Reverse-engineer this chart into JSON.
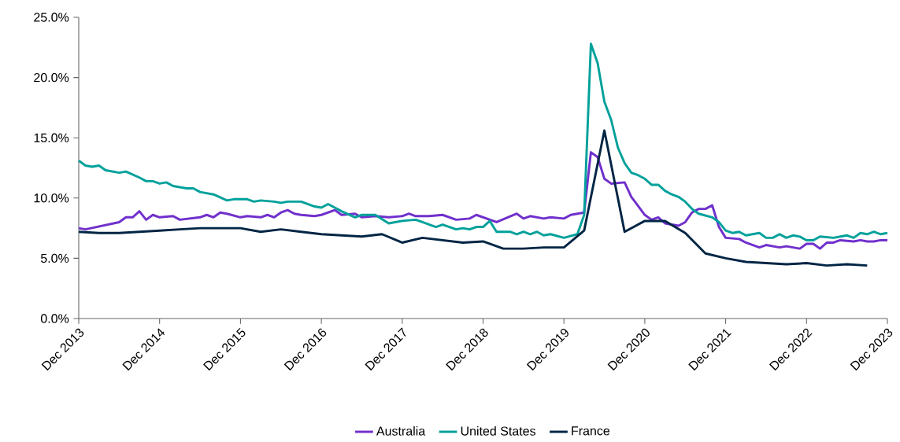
{
  "chart_data": {
    "type": "line",
    "legend": "bottom",
    "grid": false,
    "marker": "none",
    "line_style": "solid",
    "xlim": [
      "2013-12",
      "2023-12"
    ],
    "xticks": [
      {
        "value": "2013-12",
        "label": "Dec 2013"
      },
      {
        "value": "2014-12",
        "label": "Dec 2014"
      },
      {
        "value": "2015-12",
        "label": "Dec 2015"
      },
      {
        "value": "2016-12",
        "label": "Dec 2016"
      },
      {
        "value": "2017-12",
        "label": "Dec 2017"
      },
      {
        "value": "2018-12",
        "label": "Dec 2018"
      },
      {
        "value": "2019-12",
        "label": "Dec 2019"
      },
      {
        "value": "2020-12",
        "label": "Dec 2020"
      },
      {
        "value": "2021-12",
        "label": "Dec 2021"
      },
      {
        "value": "2022-12",
        "label": "Dec 2022"
      },
      {
        "value": "2023-12",
        "label": "Dec 2023"
      }
    ],
    "ylim": [
      0,
      25
    ],
    "yticks": [
      {
        "value": 0,
        "label": "0.0%"
      },
      {
        "value": 5,
        "label": "5.0%"
      },
      {
        "value": 10,
        "label": "10.0%"
      },
      {
        "value": 15,
        "label": "15.0%"
      },
      {
        "value": 20,
        "label": "20.0%"
      },
      {
        "value": 25,
        "label": "25.0%"
      }
    ],
    "series": [
      {
        "name": "Australia",
        "color": "#7030cc",
        "x": [
          "2013-12",
          "2014-01",
          "2014-06",
          "2014-07",
          "2014-08",
          "2014-09",
          "2014-10",
          "2014-11",
          "2014-12",
          "2015-02",
          "2015-03",
          "2015-06",
          "2015-07",
          "2015-08",
          "2015-09",
          "2015-10",
          "2015-12",
          "2016-01",
          "2016-03",
          "2016-04",
          "2016-05",
          "2016-06",
          "2016-07",
          "2016-08",
          "2016-09",
          "2016-11",
          "2016-12",
          "2017-02",
          "2017-03",
          "2017-05",
          "2017-06",
          "2017-08",
          "2017-10",
          "2017-12",
          "2018-01",
          "2018-02",
          "2018-04",
          "2018-06",
          "2018-08",
          "2018-10",
          "2018-11",
          "2019-01",
          "2019-02",
          "2019-05",
          "2019-06",
          "2019-07",
          "2019-09",
          "2019-10",
          "2019-12",
          "2020-01",
          "2020-02",
          "2020-03",
          "2020-04",
          "2020-05",
          "2020-06",
          "2020-07",
          "2020-09",
          "2020-10",
          "2020-12",
          "2021-01",
          "2021-02",
          "2021-03",
          "2021-05",
          "2021-06",
          "2021-07",
          "2021-08",
          "2021-09",
          "2021-10",
          "2021-11",
          "2021-12",
          "2022-02",
          "2022-03",
          "2022-05",
          "2022-06",
          "2022-08",
          "2022-09",
          "2022-11",
          "2022-12",
          "2023-01",
          "2023-02",
          "2023-03",
          "2023-04",
          "2023-05",
          "2023-07",
          "2023-08",
          "2023-09",
          "2023-10",
          "2023-11",
          "2023-12"
        ],
        "values": [
          7.5,
          7.4,
          8.0,
          8.4,
          8.4,
          8.9,
          8.2,
          8.6,
          8.4,
          8.5,
          8.2,
          8.4,
          8.6,
          8.4,
          8.8,
          8.7,
          8.4,
          8.5,
          8.4,
          8.6,
          8.4,
          8.8,
          9.0,
          8.7,
          8.6,
          8.5,
          8.6,
          9.0,
          8.6,
          8.7,
          8.4,
          8.5,
          8.4,
          8.5,
          8.7,
          8.5,
          8.5,
          8.6,
          8.2,
          8.3,
          8.6,
          8.2,
          8.0,
          8.7,
          8.3,
          8.5,
          8.3,
          8.4,
          8.3,
          8.6,
          8.7,
          8.8,
          13.8,
          13.4,
          11.6,
          11.2,
          11.3,
          10.1,
          8.6,
          8.2,
          8.4,
          7.9,
          7.7,
          8.0,
          8.8,
          9.1,
          9.1,
          9.4,
          7.6,
          6.7,
          6.6,
          6.3,
          5.9,
          6.1,
          5.9,
          6.0,
          5.8,
          6.2,
          6.2,
          5.8,
          6.3,
          6.3,
          6.5,
          6.4,
          6.5,
          6.4,
          6.4,
          6.5,
          6.5
        ]
      },
      {
        "name": "United States",
        "color": "#00a19b",
        "x": [
          "2013-12",
          "2014-01",
          "2014-02",
          "2014-03",
          "2014-04",
          "2014-06",
          "2014-07",
          "2014-09",
          "2014-10",
          "2014-11",
          "2014-12",
          "2015-01",
          "2015-02",
          "2015-04",
          "2015-05",
          "2015-06",
          "2015-08",
          "2015-10",
          "2015-11",
          "2016-01",
          "2016-02",
          "2016-03",
          "2016-05",
          "2016-06",
          "2016-07",
          "2016-09",
          "2016-11",
          "2016-12",
          "2017-01",
          "2017-02",
          "2017-03",
          "2017-05",
          "2017-06",
          "2017-08",
          "2017-10",
          "2017-12",
          "2018-02",
          "2018-03",
          "2018-05",
          "2018-06",
          "2018-08",
          "2018-09",
          "2018-10",
          "2018-11",
          "2018-12",
          "2019-01",
          "2019-02",
          "2019-04",
          "2019-05",
          "2019-06",
          "2019-07",
          "2019-08",
          "2019-09",
          "2019-10",
          "2019-12",
          "2020-02",
          "2020-03",
          "2020-04",
          "2020-05",
          "2020-06",
          "2020-07",
          "2020-08",
          "2020-09",
          "2020-10",
          "2020-11",
          "2020-12",
          "2021-01",
          "2021-02",
          "2021-03",
          "2021-04",
          "2021-05",
          "2021-06",
          "2021-07",
          "2021-08",
          "2021-10",
          "2021-11",
          "2021-12",
          "2022-01",
          "2022-02",
          "2022-03",
          "2022-05",
          "2022-06",
          "2022-07",
          "2022-08",
          "2022-09",
          "2022-10",
          "2022-11",
          "2022-12",
          "2023-01",
          "2023-02",
          "2023-04",
          "2023-06",
          "2023-07",
          "2023-08",
          "2023-09",
          "2023-10",
          "2023-11",
          "2023-12"
        ],
        "values": [
          13.1,
          12.7,
          12.6,
          12.7,
          12.3,
          12.1,
          12.2,
          11.7,
          11.4,
          11.4,
          11.2,
          11.3,
          11.0,
          10.8,
          10.8,
          10.5,
          10.3,
          9.8,
          9.9,
          9.9,
          9.7,
          9.8,
          9.7,
          9.6,
          9.7,
          9.7,
          9.3,
          9.2,
          9.5,
          9.2,
          8.9,
          8.4,
          8.6,
          8.6,
          7.9,
          8.1,
          8.2,
          8.0,
          7.6,
          7.8,
          7.4,
          7.5,
          7.4,
          7.6,
          7.6,
          8.1,
          7.2,
          7.2,
          7.0,
          7.2,
          7.0,
          7.2,
          6.9,
          7.0,
          6.7,
          7.0,
          8.6,
          22.8,
          21.2,
          18.0,
          16.5,
          14.2,
          12.9,
          12.1,
          11.9,
          11.6,
          11.1,
          11.1,
          10.6,
          10.3,
          10.1,
          9.7,
          9.1,
          8.7,
          8.4,
          8.0,
          7.3,
          7.1,
          7.2,
          6.9,
          7.1,
          6.7,
          6.7,
          7.0,
          6.7,
          6.9,
          6.8,
          6.5,
          6.5,
          6.8,
          6.7,
          6.9,
          6.7,
          7.1,
          7.0,
          7.2,
          7.0,
          7.1
        ]
      },
      {
        "name": "France",
        "color": "#002544",
        "x": [
          "2013-12",
          "2014-03",
          "2014-06",
          "2014-09",
          "2014-12",
          "2015-03",
          "2015-06",
          "2015-09",
          "2015-12",
          "2016-03",
          "2016-06",
          "2016-09",
          "2016-12",
          "2017-03",
          "2017-06",
          "2017-09",
          "2017-12",
          "2018-03",
          "2018-06",
          "2018-09",
          "2018-12",
          "2019-03",
          "2019-06",
          "2019-09",
          "2019-12",
          "2020-03",
          "2020-06",
          "2020-09",
          "2020-12",
          "2021-03",
          "2021-06",
          "2021-09",
          "2021-12",
          "2022-03",
          "2022-06",
          "2022-09",
          "2022-12",
          "2023-03",
          "2023-06",
          "2023-09"
        ],
        "values": [
          7.2,
          7.1,
          7.1,
          7.2,
          7.3,
          7.4,
          7.5,
          7.5,
          7.5,
          7.2,
          7.4,
          7.2,
          7.0,
          6.9,
          6.8,
          7.0,
          6.3,
          6.7,
          6.5,
          6.3,
          6.4,
          5.8,
          5.8,
          5.9,
          5.9,
          7.3,
          15.6,
          7.2,
          8.1,
          8.1,
          7.1,
          5.4,
          5.0,
          4.7,
          4.6,
          4.5,
          4.6,
          4.4,
          4.5,
          4.4
        ]
      }
    ]
  }
}
